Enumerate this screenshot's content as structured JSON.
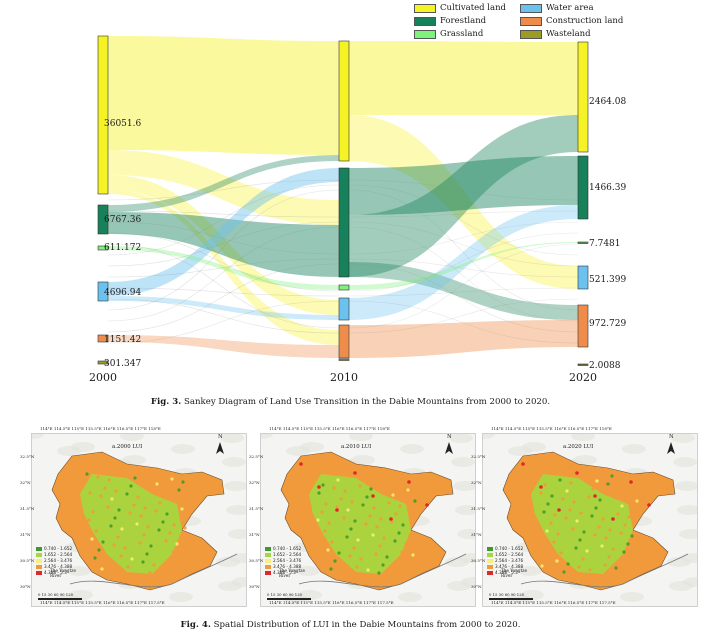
{
  "colors": {
    "cultivated": "#f5f226",
    "forest": "#16815a",
    "grass": "#7ef27a",
    "water": "#6cc2ee",
    "construction": "#ee8c4c",
    "waste": "#9c9c24"
  },
  "legend": [
    {
      "label": "Cultivated land",
      "color": "#f5f226"
    },
    {
      "label": "Water area",
      "color": "#6cc2ee"
    },
    {
      "label": "Forestland",
      "color": "#16815a"
    },
    {
      "label": "Construction land",
      "color": "#ee8c4c"
    },
    {
      "label": "Grassland",
      "color": "#7ef27a"
    },
    {
      "label": "Wasteland",
      "color": "#9c9c24"
    }
  ],
  "chart_data": {
    "type": "sankey",
    "years": [
      "2000",
      "2010",
      "2020"
    ],
    "categories": [
      "Cultivated land",
      "Forestland",
      "Grassland",
      "Water area",
      "Construction land",
      "Wasteland"
    ],
    "node_labels_2000": [
      "36051.6",
      "6767.36",
      "611.172",
      "4696.94",
      "1151.42",
      "301.347"
    ],
    "node_labels_2020": [
      "2464.08",
      "1466.39",
      "7.7481",
      "521.399",
      "972.729",
      "2.0088"
    ]
  },
  "captions": {
    "fig3_label": "Fig. 3.",
    "fig3_text": "Sankey Diagram of Land Use Transition in the Dabie Mountains from 2000 to 2020.",
    "fig4_label": "Fig. 4.",
    "fig4_text": "Spatial Distribution of LUI in the Dabie Mountains from 2000 to 2020."
  },
  "maps": [
    {
      "title": "a.2000 LUI"
    },
    {
      "title": "a.2010 LUI"
    },
    {
      "title": "a.2020 LUI"
    }
  ],
  "map_legend": [
    {
      "label": "0.740 - 1.652",
      "color": "#3f9a2a"
    },
    {
      "label": "1.652 - 2.564",
      "color": "#a7d63e"
    },
    {
      "label": "2.564 - 3.476",
      "color": "#f6f07a"
    },
    {
      "label": "3.476 - 4.388",
      "color": "#f19a3b"
    },
    {
      "label": "4.388 - 5.3",
      "color": "#e0282a"
    }
  ],
  "map_river_label": "The Yangtze River",
  "map_north": "N",
  "map_top_ticks": [
    "114°E",
    "114.5°E",
    "115°E",
    "115.5°E",
    "116°E",
    "116.5°E",
    "117°E",
    "118°E"
  ],
  "map_bottom_ticks": [
    "114°E",
    "114.5°E",
    "115°E",
    "115.5°E",
    "116°E",
    "116.5°E",
    "117°E",
    "117.5°E"
  ],
  "map_left_ticks": [
    "32.5°N",
    "32°N",
    "31.5°N",
    "31°N",
    "30.5°N",
    "30°N"
  ],
  "map_scale": [
    "0",
    "15",
    "30",
    "60",
    "90",
    "120"
  ]
}
